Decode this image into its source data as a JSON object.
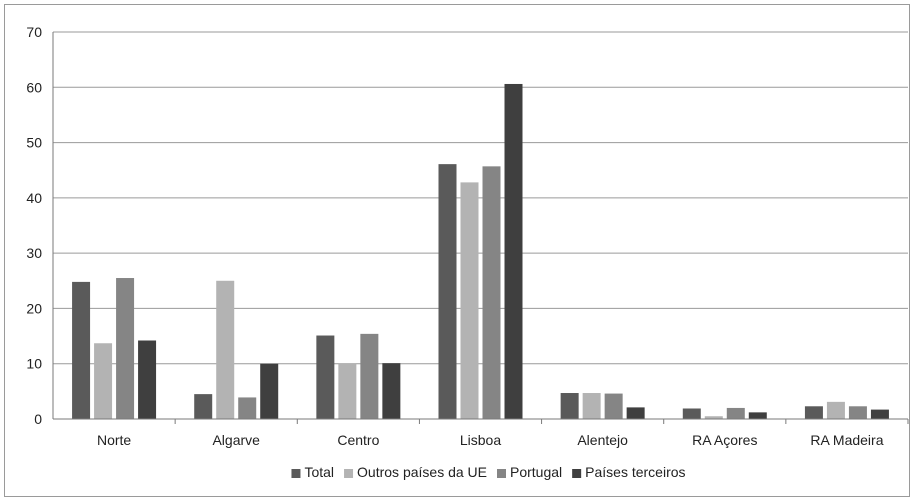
{
  "chart_data": {
    "type": "bar",
    "title": "",
    "xlabel": "",
    "ylabel": "",
    "ylim": [
      0,
      70
    ],
    "yticks": [
      0,
      10,
      20,
      30,
      40,
      50,
      60,
      70
    ],
    "grid": "horizontal",
    "legend_position": "bottom",
    "categories": [
      "Norte",
      "Algarve",
      "Centro",
      "Lisboa",
      "Alentejo",
      "RA Açores",
      "RA Madeira"
    ],
    "series": [
      {
        "name": "Total",
        "color": "#5a5a5a",
        "values": [
          24.8,
          4.5,
          15.1,
          46.1,
          4.7,
          1.9,
          2.3
        ]
      },
      {
        "name": "Outros países da UE",
        "color": "#b3b3b3",
        "values": [
          13.7,
          25.0,
          10.1,
          42.8,
          4.7,
          0.5,
          3.1
        ]
      },
      {
        "name": "Portugal",
        "color": "#858585",
        "values": [
          25.5,
          3.9,
          15.4,
          45.7,
          4.6,
          2.0,
          2.3
        ]
      },
      {
        "name": "Países terceiros",
        "color": "#3f3f3f",
        "values": [
          14.2,
          10.0,
          10.1,
          60.6,
          2.1,
          1.2,
          1.7
        ]
      }
    ]
  }
}
